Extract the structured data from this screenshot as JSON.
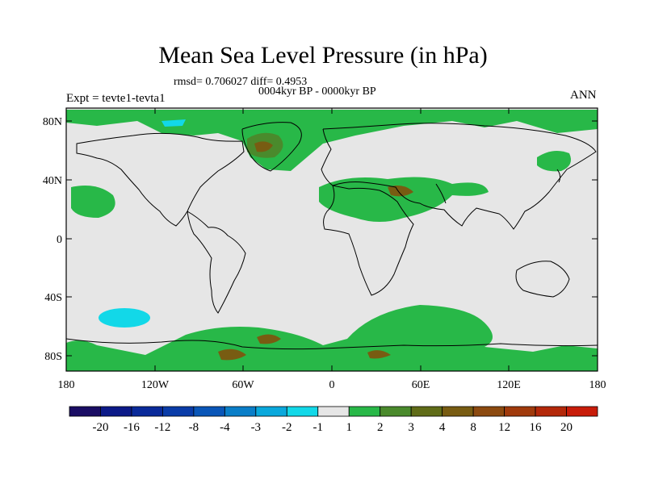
{
  "title": "Mean Sea Level Pressure (in hPa)",
  "stats_line": "rmsd= 0.706027 diff= 0.4953",
  "period": "0004kyr BP - 0000kyr BP",
  "experiment": "Expt = tevte1-tevta1",
  "season": "ANN",
  "lat_labels": [
    "80N",
    "40N",
    "0",
    "40S",
    "80S"
  ],
  "lon_labels": [
    "180",
    "120W",
    "60W",
    "0",
    "60E",
    "120E",
    "180"
  ],
  "colorbar": {
    "colors": [
      "#1a0d64",
      "#0c1a88",
      "#0a2a9a",
      "#0a3ca8",
      "#0a56b8",
      "#0a7ec8",
      "#0aa8dc",
      "#12d8e8",
      "#e6e6e6",
      "#28b848",
      "#4a8a2c",
      "#606c18",
      "#785c12",
      "#8c4a10",
      "#a03a0c",
      "#b4280a",
      "#c81c0a"
    ],
    "labels": [
      "-20",
      "-16",
      "-12",
      "-8",
      "-4",
      "-3",
      "-2",
      "-1",
      "1",
      "2",
      "3",
      "4",
      "8",
      "12",
      "16",
      "20"
    ]
  }
}
